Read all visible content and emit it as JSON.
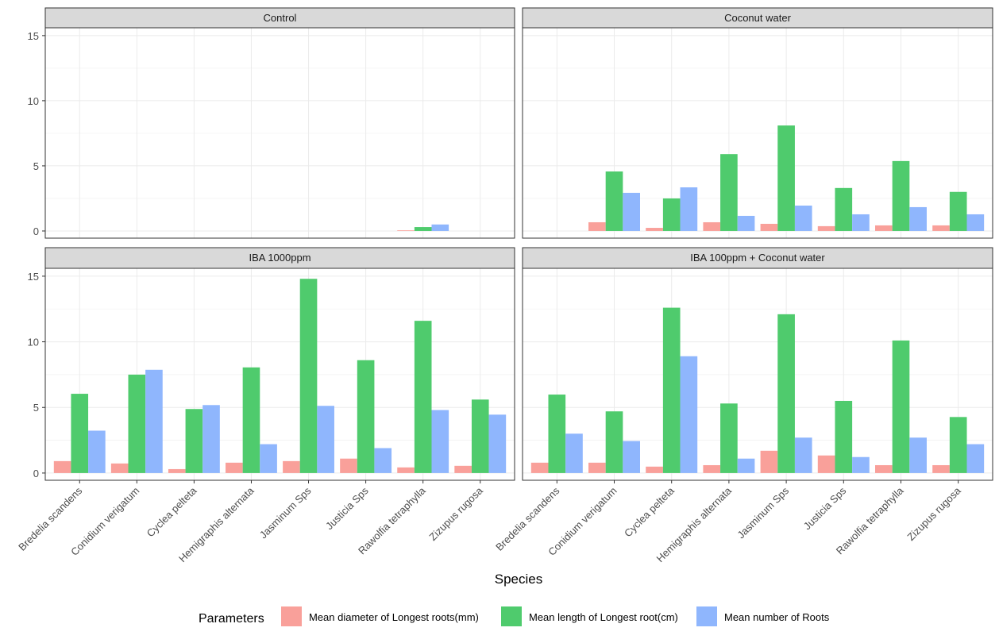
{
  "chart_data": {
    "type": "bar",
    "xlabel": "Species",
    "ylabel": "",
    "ylim": [
      0,
      15
    ],
    "yticks": [
      0,
      5,
      10,
      15
    ],
    "grid": true,
    "legend": {
      "title": "Parameters",
      "placement": "bottom"
    },
    "categories": [
      "Bredelia scandens",
      "Conidium verigatum",
      "Cyclea pelteta",
      "Hemigraphis alternata",
      "Jasminum Sps",
      "Justicia Sps",
      "Rawolfia tetraphylla",
      "Zizupus rugosa"
    ],
    "series_names": [
      "Mean diameter of Longest roots(mm)",
      "Mean length of Longest root(cm)",
      "Mean number of Roots"
    ],
    "colors": [
      "#F9A09A",
      "#4FCB6D",
      "#8FB6FD"
    ],
    "facets": [
      {
        "title": "Control",
        "series": [
          [
            0,
            0,
            0,
            0,
            0,
            0,
            0.05,
            0
          ],
          [
            0,
            0,
            0,
            0,
            0,
            0,
            0.3,
            0
          ],
          [
            0,
            0,
            0,
            0,
            0,
            0,
            0.5,
            0
          ]
        ]
      },
      {
        "title": "Coconut water",
        "series": [
          [
            0,
            0.67,
            0.24,
            0.67,
            0.55,
            0.37,
            0.43,
            0.43
          ],
          [
            0,
            4.57,
            2.5,
            5.9,
            8.1,
            3.3,
            5.37,
            3.0
          ],
          [
            0,
            2.93,
            3.35,
            1.16,
            1.95,
            1.28,
            1.83,
            1.28
          ]
        ]
      },
      {
        "title": "IBA 1000ppm",
        "series": [
          [
            0.91,
            0.73,
            0.3,
            0.79,
            0.91,
            1.1,
            0.43,
            0.55
          ],
          [
            6.04,
            7.5,
            4.88,
            8.05,
            14.8,
            8.6,
            11.6,
            5.6
          ],
          [
            3.23,
            7.87,
            5.18,
            2.2,
            5.12,
            1.9,
            4.8,
            4.45
          ]
        ]
      },
      {
        "title": "IBA 100ppm + Coconut water",
        "series": [
          [
            0.79,
            0.79,
            0.49,
            0.6,
            1.7,
            1.34,
            0.6,
            0.6
          ],
          [
            5.98,
            4.7,
            12.6,
            5.3,
            12.1,
            5.5,
            10.1,
            4.27
          ],
          [
            3.0,
            2.44,
            8.9,
            1.1,
            2.7,
            1.22,
            2.7,
            2.2
          ]
        ]
      }
    ]
  }
}
